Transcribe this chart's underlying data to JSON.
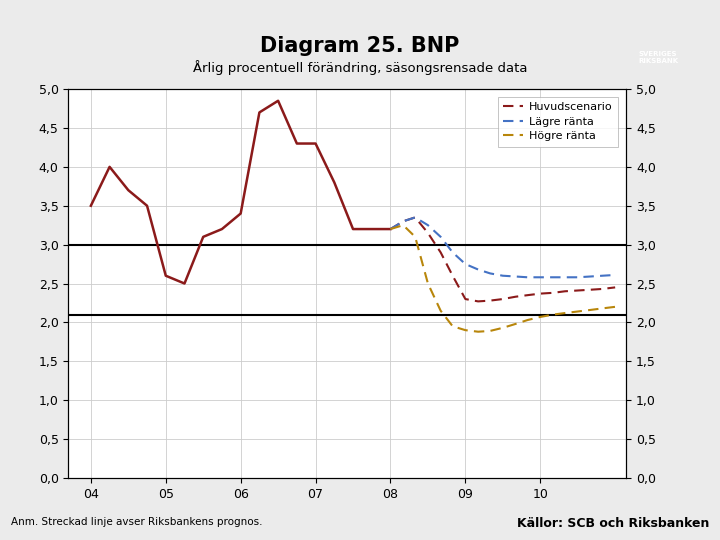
{
  "title": "Diagram 25. BNP",
  "subtitle": "Årlig procentuell förändring, säsongsrensade data",
  "footnote": "Anm. Streckad linje avser Riksbankens prognos.",
  "source": "Källor: SCB och Riksbanken",
  "ylim": [
    0.0,
    5.0
  ],
  "yticks": [
    0.0,
    0.5,
    1.0,
    1.5,
    2.0,
    2.5,
    3.0,
    3.5,
    4.0,
    4.5,
    5.0
  ],
  "hlines": [
    3.0,
    2.1
  ],
  "solid_series": {
    "color": "#8B1A1A",
    "x": [
      2004.0,
      2004.25,
      2004.5,
      2004.75,
      2005.0,
      2005.25,
      2005.5,
      2005.75,
      2006.0,
      2006.25,
      2006.5,
      2006.75,
      2007.0,
      2007.25,
      2007.5,
      2007.75,
      2008.0
    ],
    "y": [
      3.5,
      4.0,
      3.7,
      3.5,
      2.6,
      2.5,
      3.1,
      3.2,
      3.4,
      4.7,
      4.85,
      4.3,
      4.3,
      3.8,
      3.2,
      3.2,
      3.2
    ]
  },
  "huvudscenario": {
    "label": "Huvudscenario",
    "color": "#8B1A1A",
    "x": [
      2008.0,
      2008.17,
      2008.33,
      2008.5,
      2008.67,
      2008.83,
      2009.0,
      2009.17,
      2009.33,
      2009.5,
      2009.67,
      2009.83,
      2010.0,
      2010.17,
      2010.33,
      2010.5,
      2010.67,
      2010.83,
      2011.0
    ],
    "y": [
      3.2,
      3.3,
      3.35,
      3.15,
      2.9,
      2.6,
      2.3,
      2.27,
      2.28,
      2.3,
      2.33,
      2.35,
      2.37,
      2.38,
      2.4,
      2.41,
      2.42,
      2.43,
      2.45
    ]
  },
  "lagre_ranta": {
    "label": "Lägre ränta",
    "color": "#4472C4",
    "x": [
      2008.0,
      2008.17,
      2008.33,
      2008.5,
      2008.67,
      2008.83,
      2009.0,
      2009.17,
      2009.33,
      2009.5,
      2009.67,
      2009.83,
      2010.0,
      2010.17,
      2010.33,
      2010.5,
      2010.67,
      2010.83,
      2011.0
    ],
    "y": [
      3.2,
      3.3,
      3.35,
      3.25,
      3.1,
      2.9,
      2.75,
      2.68,
      2.63,
      2.6,
      2.59,
      2.58,
      2.58,
      2.58,
      2.58,
      2.58,
      2.59,
      2.6,
      2.61
    ]
  },
  "hogre_ranta": {
    "label": "Högre ränta",
    "color": "#B8860B",
    "x": [
      2008.0,
      2008.17,
      2008.33,
      2008.5,
      2008.67,
      2008.83,
      2009.0,
      2009.17,
      2009.33,
      2009.5,
      2009.67,
      2009.83,
      2010.0,
      2010.17,
      2010.33,
      2010.5,
      2010.67,
      2010.83,
      2011.0
    ],
    "y": [
      3.2,
      3.25,
      3.1,
      2.5,
      2.15,
      1.95,
      1.9,
      1.88,
      1.89,
      1.93,
      1.98,
      2.03,
      2.07,
      2.1,
      2.12,
      2.14,
      2.16,
      2.18,
      2.2
    ]
  },
  "background_color": "#EBEBEB",
  "plot_bg": "#FFFFFF",
  "footer_bar_color": "#1F3C6B",
  "xtick_labels": [
    "04",
    "05",
    "06",
    "07",
    "08",
    "09",
    "10"
  ],
  "xtick_pos": [
    2004,
    2005,
    2006,
    2007,
    2008,
    2009,
    2010
  ]
}
